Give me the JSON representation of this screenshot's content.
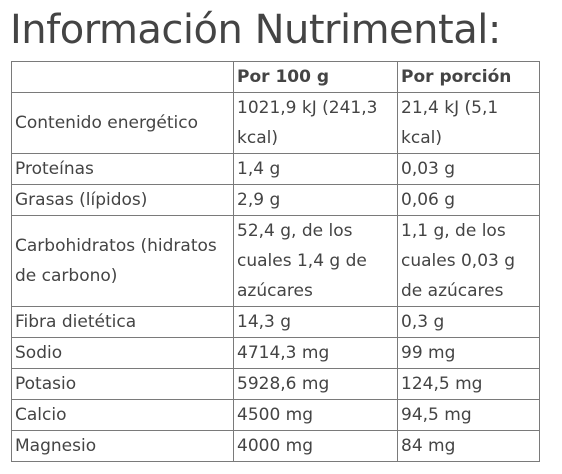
{
  "title": "Información Nutrimental:",
  "table": {
    "headers": [
      "",
      "Por 100 g",
      "Por porción"
    ],
    "rows": [
      {
        "nutrient": "Contenido energético",
        "per100": "1021,9 kJ (241,3 kcal)",
        "portion": "21,4 kJ (5,1 kcal)"
      },
      {
        "nutrient": "Proteínas",
        "per100": "1,4 g",
        "portion": "0,03 g"
      },
      {
        "nutrient": "Grasas (lípidos)",
        "per100": "2,9 g",
        "portion": "0,06 g"
      },
      {
        "nutrient": "Carbohidratos (hidratos de carbono)",
        "per100": "52,4 g, de los cuales 1,4 g de azúcares",
        "portion": "1,1 g, de los cuales  0,03 g de azúcares"
      },
      {
        "nutrient": "Fibra dietética",
        "per100": "14,3 g",
        "portion": "0,3 g"
      },
      {
        "nutrient": "Sodio",
        "per100": "4714,3 mg",
        "portion": "99 mg"
      },
      {
        "nutrient": "Potasio",
        "per100": "5928,6 mg",
        "portion": "124,5 mg"
      },
      {
        "nutrient": "Calcio",
        "per100": "4500 mg",
        "portion": "94,5 mg"
      },
      {
        "nutrient": "Magnesio",
        "per100": "4000 mg",
        "portion": "84 mg"
      }
    ]
  }
}
